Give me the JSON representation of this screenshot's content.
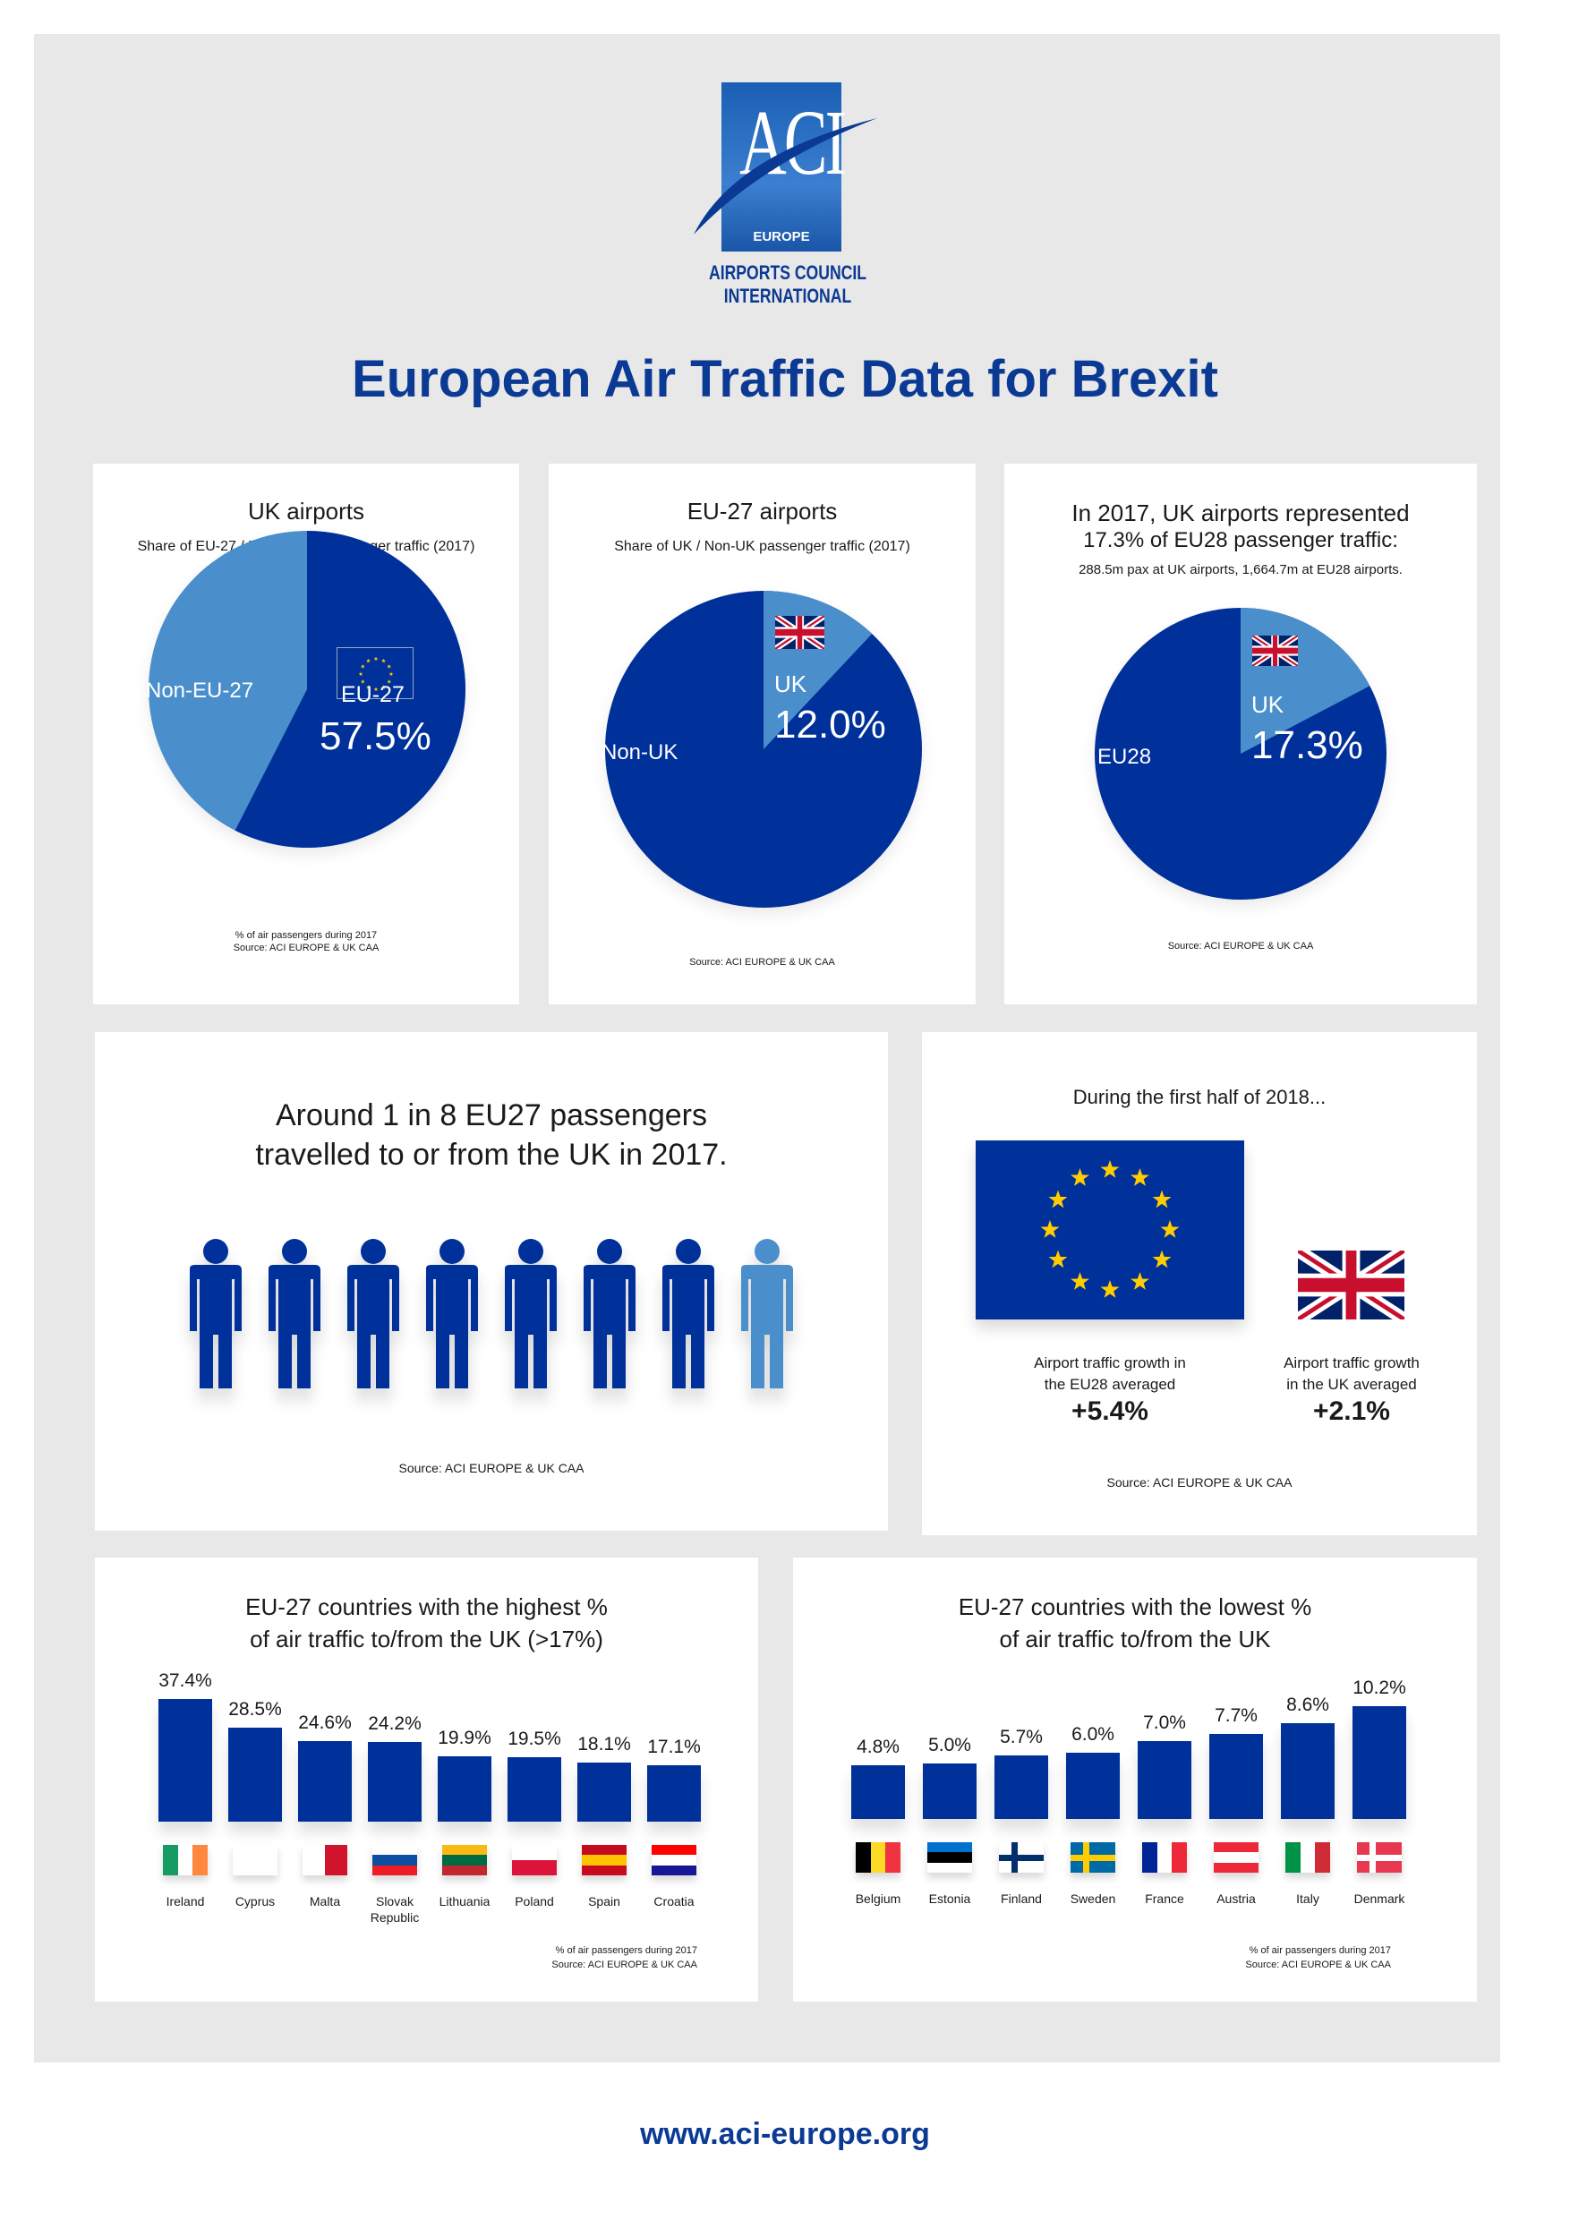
{
  "logo": {
    "letters": "ACI",
    "region": "EUROPE",
    "line1": "AIRPORTS COUNCIL",
    "line2": "INTERNATIONAL"
  },
  "title": "European Air Traffic Data for Brexit",
  "colors": {
    "dark": "#00309a",
    "light": "#4a8fcc",
    "title": "#0b3a94"
  },
  "pies": [
    {
      "title": "UK airports",
      "subtitle": "Share of EU-27 / Non-EU-27 passenger traffic (2017)",
      "main_label": "EU-27",
      "main_value": "57.5%",
      "main_share": 57.5,
      "main_color": "dark",
      "other_label": "Non-EU-27",
      "flag": "eu",
      "note": "% of air passengers during 2017",
      "source": "Source: ACI EUROPE & UK CAA"
    },
    {
      "title": "EU-27 airports",
      "subtitle": "Share of UK / Non-UK passenger traffic (2017)",
      "main_label": "UK",
      "main_value": "12.0%",
      "main_share": 12.0,
      "main_color": "light",
      "other_label": "Non-UK",
      "flag": "uk",
      "source": "Source: ACI EUROPE & UK CAA"
    },
    {
      "title": "In 2017, UK airports represented",
      "title2": "17.3% of EU28 passenger traffic:",
      "subtitle": "288.5m pax at UK airports, 1,664.7m at EU28 airports.",
      "main_label": "UK",
      "main_value": "17.3%",
      "main_share": 17.3,
      "main_color": "light",
      "other_label": "EU28",
      "flag": "uk",
      "source": "Source: ACI EUROPE & UK CAA"
    }
  ],
  "people": {
    "line1": "Around 1 in 8 EU27 passengers",
    "line2": "travelled to or from the UK in 2017.",
    "count": 8,
    "highlighted": 1,
    "source": "Source: ACI EUROPE & UK CAA"
  },
  "growth": {
    "heading": "During the first half of 2018...",
    "eu_text1": "Airport traffic growth in",
    "eu_text2": "the EU28 averaged",
    "eu_value": "+5.4%",
    "uk_text1": "Airport traffic growth",
    "uk_text2": "in the UK averaged",
    "uk_value": "+2.1%",
    "source": "Source: ACI EUROPE & UK CAA"
  },
  "chart_data": [
    {
      "type": "bar",
      "title": "EU-27 countries with the highest % of air traffic to/from the UK (>17%)",
      "title1": "EU-27 countries with the highest %",
      "title2": "of air traffic to/from the UK (>17%)",
      "categories": [
        "Ireland",
        "Cyprus",
        "Malta",
        "Slovak Republic",
        "Lithuania",
        "Poland",
        "Spain",
        "Croatia"
      ],
      "values": [
        37.4,
        28.5,
        24.6,
        24.2,
        19.9,
        19.5,
        18.1,
        17.1
      ],
      "labels": [
        "37.4%",
        "28.5%",
        "24.6%",
        "24.2%",
        "19.9%",
        "19.5%",
        "18.1%",
        "17.1%"
      ],
      "ylim": [
        0,
        37.4
      ],
      "grid": false,
      "flags": [
        [
          "v",
          "#169b62",
          "#fff",
          "#ff883e"
        ],
        [
          "v",
          "#fff"
        ],
        [
          "v",
          "#fff",
          "#cf142b"
        ],
        [
          "h",
          "#fff",
          "#0b4ea2",
          "#ee1c25"
        ],
        [
          "h",
          "#fdb913",
          "#006a44",
          "#c1272d"
        ],
        [
          "h",
          "#fff",
          "#dc143c"
        ],
        [
          "h",
          "#c60b1e",
          "#ffc400",
          "#c60b1e"
        ],
        [
          "h",
          "#ff0000",
          "#fff",
          "#171796"
        ]
      ],
      "note": "% of air passengers during 2017",
      "source": "Source: ACI EUROPE & UK CAA"
    },
    {
      "type": "bar",
      "title": "EU-27 countries with the lowest % of air traffic to/from the UK",
      "title1": "EU-27 countries with the lowest %",
      "title2": "of air traffic to/from the UK",
      "categories": [
        "Belgium",
        "Estonia",
        "Finland",
        "Sweden",
        "France",
        "Austria",
        "Italy",
        "Denmark"
      ],
      "values": [
        4.8,
        5.0,
        5.7,
        6.0,
        7.0,
        7.7,
        8.6,
        10.2
      ],
      "labels": [
        "4.8%",
        "5.0%",
        "5.7%",
        "6.0%",
        "7.0%",
        "7.7%",
        "8.6%",
        "10.2%"
      ],
      "ylim": [
        0,
        10.2
      ],
      "grid": false,
      "flags": [
        [
          "v",
          "#000",
          "#fdda24",
          "#ef3340"
        ],
        [
          "h",
          "#0072ce",
          "#000",
          "#fff"
        ],
        [
          "c",
          "#fff",
          "#002f6c"
        ],
        [
          "c",
          "#006aa7",
          "#fecc00"
        ],
        [
          "v",
          "#002395",
          "#fff",
          "#ed2939"
        ],
        [
          "h",
          "#ed2939",
          "#fff",
          "#ed2939"
        ],
        [
          "v",
          "#009246",
          "#fff",
          "#ce2b37"
        ],
        [
          "c",
          "#e8384f",
          "#fff"
        ]
      ],
      "note": "% of air passengers during 2017",
      "source": "Source: ACI EUROPE & UK CAA"
    }
  ],
  "footer": {
    "url": "www.aci-europe.org"
  }
}
